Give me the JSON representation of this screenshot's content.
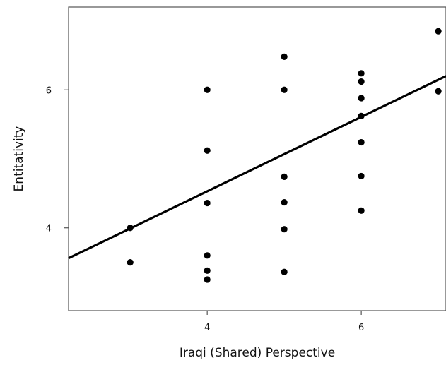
{
  "chart_data": {
    "type": "scatter",
    "title": "",
    "xlabel": "Iraqi (Shared) Perspective",
    "ylabel": "Entitativity",
    "xlim": [
      2.2,
      7.1
    ],
    "ylim": [
      2.8,
      7.2
    ],
    "x_ticks": [
      4,
      6
    ],
    "y_ticks": [
      4,
      6
    ],
    "points": [
      {
        "x": 3,
        "y": 4.0
      },
      {
        "x": 3,
        "y": 3.5
      },
      {
        "x": 4,
        "y": 6.0
      },
      {
        "x": 4,
        "y": 5.12
      },
      {
        "x": 4,
        "y": 4.36
      },
      {
        "x": 4,
        "y": 3.6
      },
      {
        "x": 4,
        "y": 3.38
      },
      {
        "x": 4,
        "y": 3.25
      },
      {
        "x": 5,
        "y": 6.48
      },
      {
        "x": 5,
        "y": 6.0
      },
      {
        "x": 5,
        "y": 4.74
      },
      {
        "x": 5,
        "y": 4.37
      },
      {
        "x": 5,
        "y": 3.98
      },
      {
        "x": 5,
        "y": 3.36
      },
      {
        "x": 6,
        "y": 6.24
      },
      {
        "x": 6,
        "y": 6.12
      },
      {
        "x": 6,
        "y": 5.88
      },
      {
        "x": 6,
        "y": 5.62
      },
      {
        "x": 6,
        "y": 5.24
      },
      {
        "x": 6,
        "y": 4.75
      },
      {
        "x": 6,
        "y": 4.25
      },
      {
        "x": 7,
        "y": 6.85
      },
      {
        "x": 7,
        "y": 5.98
      }
    ],
    "fit_line": {
      "x": [
        2.2,
        7.1
      ],
      "y": [
        3.56,
        6.2
      ]
    },
    "grid": false,
    "legend": "none"
  }
}
